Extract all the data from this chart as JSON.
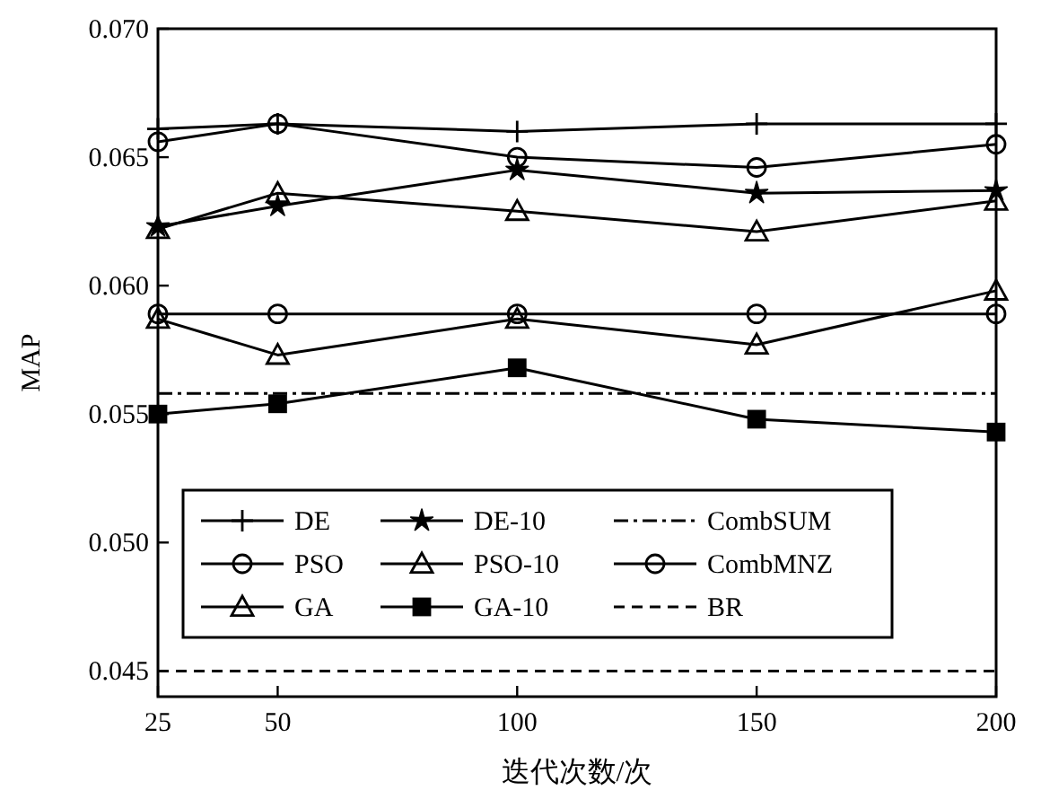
{
  "chart_data": {
    "type": "line",
    "xlabel": "迭代次数/次",
    "ylabel": "MAP",
    "x": [
      25,
      50,
      100,
      150,
      200
    ],
    "xlim": [
      25,
      200
    ],
    "xticks": [
      25,
      50,
      100,
      150,
      200
    ],
    "ylim": [
      0.044,
      0.07
    ],
    "yticks": [
      {
        "value": 0.045,
        "label": "0.045"
      },
      {
        "value": 0.05,
        "label": "0.050"
      },
      {
        "value": 0.055,
        "label": "0.055"
      },
      {
        "value": 0.06,
        "label": "0.060"
      },
      {
        "value": 0.065,
        "label": "0.065"
      },
      {
        "value": 0.07,
        "label": "0.070"
      }
    ],
    "grid": false,
    "legend": "bottom left",
    "line_style": "solid",
    "series": [
      {
        "name": "DE",
        "color": "#000000",
        "marker": "cross",
        "values": [
          0.0661,
          0.0663,
          0.066,
          0.0663,
          0.0663
        ]
      },
      {
        "name": "PSO",
        "color": "#000000",
        "marker": "circle",
        "values": [
          0.0656,
          0.0663,
          0.065,
          0.0646,
          0.0655
        ]
      },
      {
        "name": "GA",
        "color": "#000000",
        "marker": "triangle",
        "values": [
          0.0587,
          0.0573,
          0.0587,
          0.0577,
          0.0598
        ]
      },
      {
        "name": "DE-10",
        "color": "#000000",
        "marker": "star",
        "values": [
          0.0623,
          0.0631,
          0.0645,
          0.0636,
          0.0637
        ]
      },
      {
        "name": "PSO-10",
        "color": "#000000",
        "marker": "triangle",
        "values": [
          0.0622,
          0.0636,
          0.0629,
          0.0621,
          0.0633
        ]
      },
      {
        "name": "GA-10",
        "color": "#000000",
        "marker": "square",
        "values": [
          0.055,
          0.0554,
          0.0568,
          0.0548,
          0.0543
        ]
      },
      {
        "name": "CombSUM",
        "color": "#000000",
        "marker": "none",
        "line_style": "dashdot",
        "values": [
          0.0558,
          0.0558,
          0.0558,
          0.0558,
          0.0558
        ]
      },
      {
        "name": "CombMNZ",
        "color": "#000000",
        "marker": "circle",
        "values": [
          0.0589,
          0.0589,
          0.0589,
          0.0589,
          0.0589
        ]
      },
      {
        "name": "BR",
        "color": "#000000",
        "marker": "none",
        "line_style": "dashed",
        "values": [
          0.045,
          0.045,
          0.045,
          0.045,
          0.045
        ]
      }
    ]
  }
}
